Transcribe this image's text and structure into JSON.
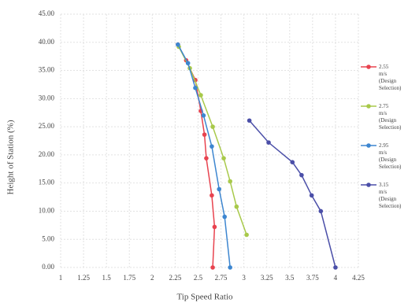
{
  "chart_data": {
    "type": "line",
    "xlabel": "Tip Speed Ratio",
    "ylabel": "Height of Station (%)",
    "xlim": [
      1,
      4.25
    ],
    "xticks": [
      1,
      1.25,
      1.5,
      1.75,
      2,
      2.25,
      2.5,
      2.75,
      3,
      3.25,
      3.5,
      3.75,
      4,
      4.25
    ],
    "ylim": [
      0,
      45
    ],
    "yticks": [
      {
        "value": 0,
        "label": "0.00"
      },
      {
        "value": 5,
        "label": "5.00"
      },
      {
        "value": 10,
        "label": "10.00"
      },
      {
        "value": 15,
        "label": "15.00"
      },
      {
        "value": 20,
        "label": "20.00"
      },
      {
        "value": 25,
        "label": "25.00"
      },
      {
        "value": 30,
        "label": "30.00"
      },
      {
        "value": 35,
        "label": "35.00"
      },
      {
        "value": 40,
        "label": "40.00"
      },
      {
        "value": 45,
        "label": "45.00"
      }
    ],
    "grid": true,
    "legend": "right",
    "series": [
      {
        "name": "2.55 m/s (Design Selection)",
        "color": "#e8434f",
        "x": [
          2.66,
          2.68,
          2.65,
          2.59,
          2.57,
          2.53,
          2.47,
          2.37,
          2.28
        ],
        "values": [
          0,
          7.2,
          12.8,
          19.4,
          23.6,
          27.8,
          33.3,
          36.8,
          39.6
        ]
      },
      {
        "name": "2.75 m/s (Design Selection)",
        "color": "#a8c94a",
        "x": [
          3.03,
          2.92,
          2.85,
          2.78,
          2.66,
          2.53,
          2.41,
          2.29
        ],
        "values": [
          5.8,
          10.8,
          15.3,
          19.4,
          25,
          30.6,
          35.4,
          39.2
        ]
      },
      {
        "name": "2.95 m/s (Design Selection)",
        "color": "#3d86d0",
        "x": [
          2.85,
          2.79,
          2.73,
          2.65,
          2.56,
          2.47,
          2.39,
          2.28
        ],
        "values": [
          0,
          9,
          13.9,
          21.5,
          27,
          31.9,
          36.3,
          39.6
        ]
      },
      {
        "name": "3.15 m/s (Design Selection)",
        "color": "#4b4fa8",
        "x": [
          4.0,
          3.84,
          3.74,
          3.63,
          3.53,
          3.27,
          3.06
        ],
        "values": [
          0,
          10,
          12.8,
          16.4,
          18.7,
          22.2,
          26.1
        ]
      }
    ]
  }
}
